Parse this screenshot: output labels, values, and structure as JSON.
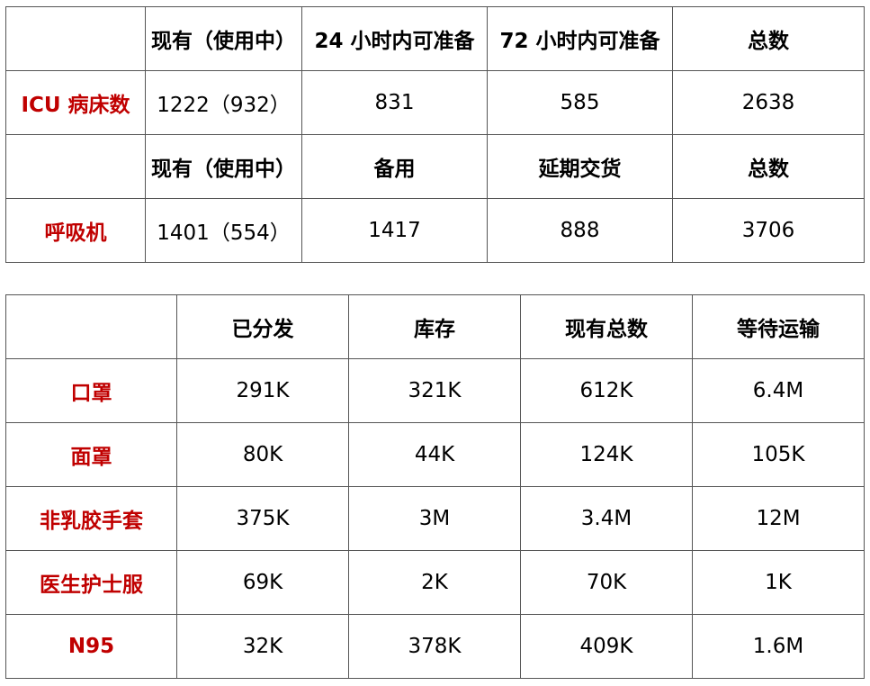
{
  "table1": {
    "section_icu": {
      "headers": [
        "",
        "现有（使用中）",
        "24 小时内可准备",
        "72 小时内可准备",
        "总数"
      ],
      "row_label": "ICU 病床数",
      "values": [
        "1222（932）",
        "831",
        "585",
        "2638"
      ]
    },
    "section_vent": {
      "headers": [
        "",
        "现有（使用中）",
        "备用",
        "延期交货",
        "总数"
      ],
      "row_label": "呼吸机",
      "values": [
        "1401（554）",
        "1417",
        "888",
        "3706"
      ]
    }
  },
  "table2": {
    "headers": [
      "",
      "已分发",
      "库存",
      "现有总数",
      "等待运输"
    ],
    "rows": [
      {
        "label": "口罩",
        "values": [
          "291K",
          "321K",
          "612K",
          "6.4M"
        ]
      },
      {
        "label": "面罩",
        "values": [
          "80K",
          "44K",
          "124K",
          "105K"
        ]
      },
      {
        "label": "非乳胶手套",
        "values": [
          "375K",
          "3M",
          "3.4M",
          "12M"
        ]
      },
      {
        "label": "医生护士服",
        "values": [
          "69K",
          "2K",
          "70K",
          "1K"
        ]
      },
      {
        "label": "N95",
        "values": [
          "32K",
          "378K",
          "409K",
          "1.6M"
        ]
      }
    ]
  },
  "colors": {
    "row_label": "#c00000",
    "border": "#555555"
  }
}
